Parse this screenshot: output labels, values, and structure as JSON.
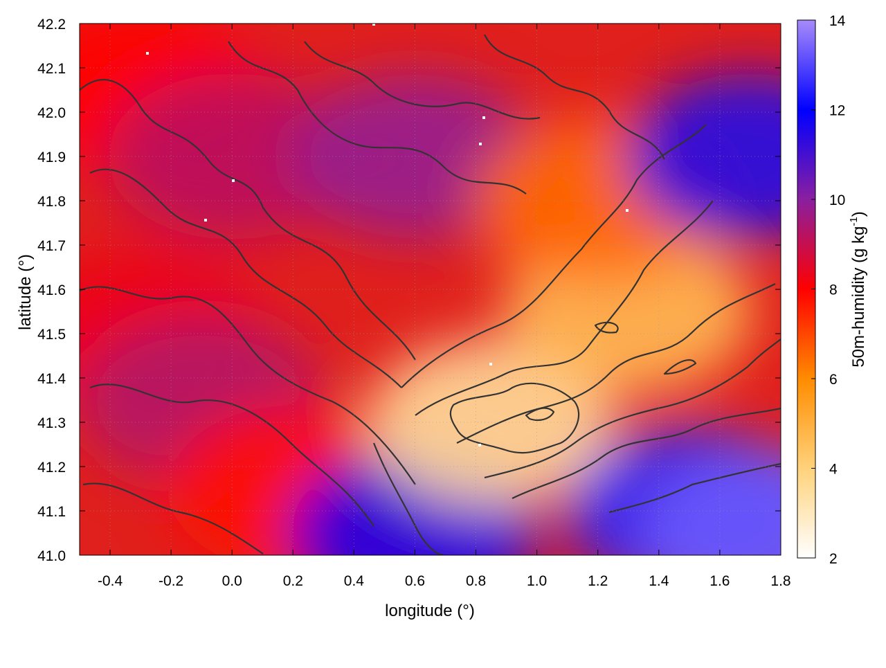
{
  "chart_data": {
    "type": "heatmap",
    "xlabel": "longitude (°)",
    "ylabel": "latitude (°)",
    "colorbar_label": "50m-humidity (g kg",
    "colorbar_label_sup": "-1",
    "colorbar_label_end": ")",
    "xlim": [
      -0.5,
      1.8
    ],
    "ylim": [
      41.0,
      42.2
    ],
    "x_ticks": [
      -0.4,
      -0.2,
      0.0,
      0.2,
      0.4,
      0.6,
      0.8,
      1.0,
      1.2,
      1.4,
      1.6,
      1.8
    ],
    "x_tick_labels": [
      "-0.4",
      "-0.2",
      "0.0",
      "0.2",
      "0.4",
      "0.6",
      "0.8",
      "1.0",
      "1.2",
      "1.4",
      "1.6",
      "1.8"
    ],
    "y_ticks": [
      41.0,
      41.1,
      41.2,
      41.3,
      41.4,
      41.5,
      41.6,
      41.7,
      41.8,
      41.9,
      42.0,
      42.1,
      42.2
    ],
    "y_tick_labels": [
      "41.0",
      "41.1",
      "41.2",
      "41.3",
      "41.4",
      "41.5",
      "41.6",
      "41.7",
      "41.8",
      "41.9",
      "42.0",
      "42.1",
      "42.2"
    ],
    "colorbar_range": [
      2,
      14
    ],
    "colorbar_ticks": [
      2,
      4,
      6,
      8,
      10,
      12,
      14
    ],
    "colorbar_tick_labels": [
      "2",
      "4",
      "6",
      "8",
      "10",
      "12",
      "14"
    ],
    "colormap": [
      {
        "v": 2,
        "color": "#ffffff"
      },
      {
        "v": 4,
        "color": "#ffd27a"
      },
      {
        "v": 6,
        "color": "#ff8c00"
      },
      {
        "v": 8,
        "color": "#ff0000"
      },
      {
        "v": 10,
        "color": "#8a1fa0"
      },
      {
        "v": 12,
        "color": "#0000ff"
      },
      {
        "v": 14,
        "color": "#a78bfa"
      }
    ],
    "grid": true,
    "contour_color": "#333333",
    "regions": [
      {
        "lon": -0.3,
        "lat": 42.05,
        "value": 8.0
      },
      {
        "lon": 0.0,
        "lat": 41.9,
        "value": 9.2
      },
      {
        "lon": 0.6,
        "lat": 41.9,
        "value": 9.8
      },
      {
        "lon": -0.3,
        "lat": 41.5,
        "value": 8.3
      },
      {
        "lon": -0.1,
        "lat": 41.35,
        "value": 9.3
      },
      {
        "lon": 0.2,
        "lat": 41.15,
        "value": 7.8
      },
      {
        "lon": 0.6,
        "lat": 41.05,
        "value": 11.6
      },
      {
        "lon": 0.85,
        "lat": 41.3,
        "value": 3.5
      },
      {
        "lon": 1.3,
        "lat": 41.55,
        "value": 4.6
      },
      {
        "lon": 1.2,
        "lat": 41.8,
        "value": 6.5
      },
      {
        "lon": 1.7,
        "lat": 41.9,
        "value": 11.5
      },
      {
        "lon": 1.5,
        "lat": 41.1,
        "value": 12.5
      },
      {
        "lon": 1.75,
        "lat": 41.05,
        "value": 13.3
      }
    ]
  }
}
